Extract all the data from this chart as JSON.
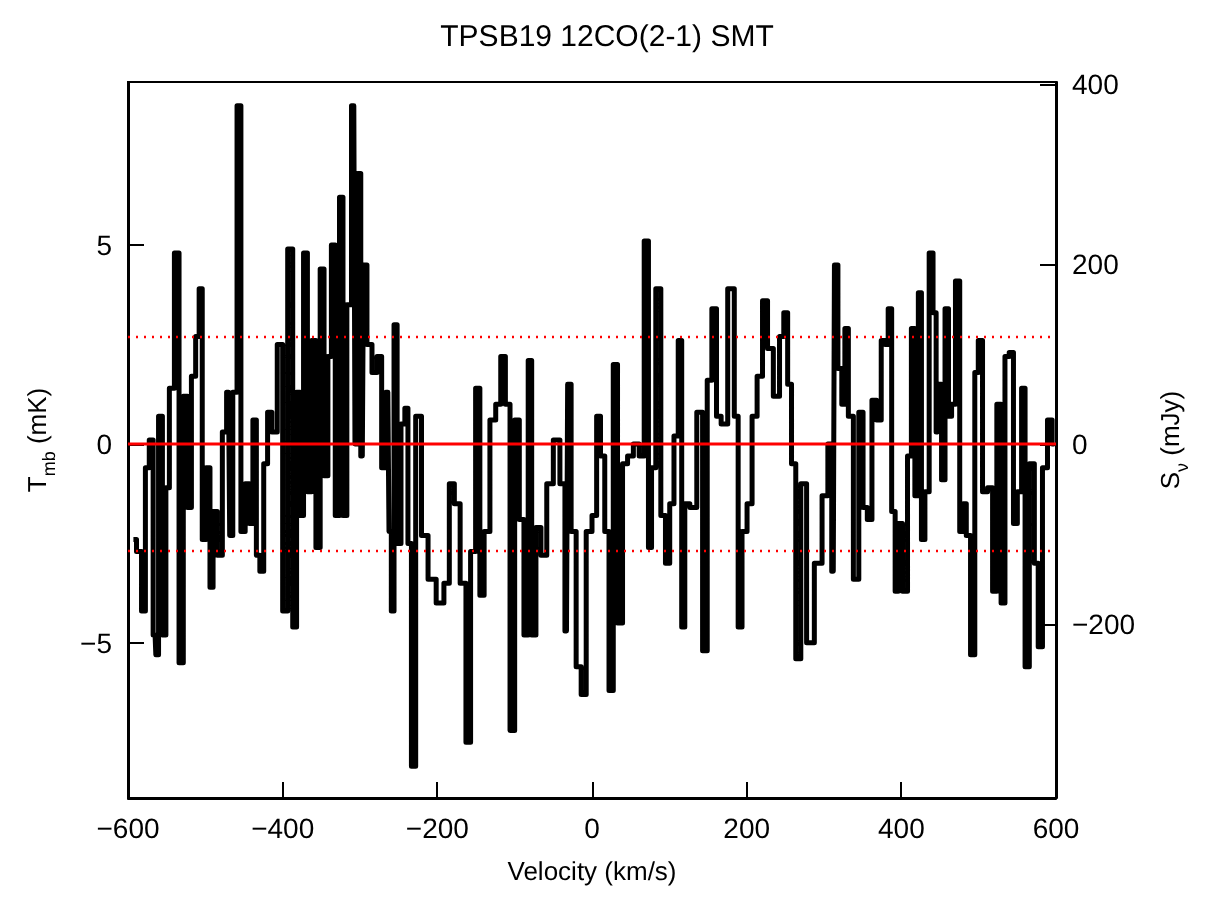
{
  "chart_data": {
    "type": "step",
    "title": "TPSB19 12CO(2-1) SMT",
    "xlabel": "Velocity (km/s)",
    "ylabel": "T$_{mb}$ (mK)",
    "y2label": "S$_{ν}$ (mJy)",
    "xlim": [
      -600,
      600
    ],
    "xticks": [
      -600,
      -400,
      -200,
      0,
      200,
      400,
      600
    ],
    "ylim": [
      -8.9,
      9.1
    ],
    "yticks": [
      -5,
      0,
      5
    ],
    "y2lim": [
      -393,
      402
    ],
    "y2ticks": [
      -200,
      0,
      200,
      400
    ],
    "grid": false,
    "ref_lines": [
      {
        "axis": "y",
        "value": 0,
        "color": "#ff0000",
        "line_style": "solid"
      },
      {
        "axis": "y",
        "value": 2.7,
        "color": "#ff0000",
        "line_style": "dotted"
      },
      {
        "axis": "y",
        "value": -2.7,
        "color": "#ff0000",
        "line_style": "dotted"
      }
    ],
    "series": [
      {
        "color": "#000000",
        "x": [
          -593,
          -585,
          -580,
          -575,
          -570,
          -565,
          -563,
          -558,
          -553,
          -549,
          -544,
          -536,
          -532,
          -525,
          -521,
          -515,
          -510,
          -506,
          -502,
          -496,
          -492,
          -488,
          -481,
          -475,
          -470,
          -467,
          -462,
          -456,
          -452,
          -445,
          -441,
          -436,
          -432,
          -427,
          -422,
          -417,
          -411,
          -403,
          -397,
          -390,
          -384,
          -380,
          -375,
          -371,
          -365,
          -360,
          -354,
          -349,
          -344,
          -339,
          -335,
          -329,
          -324,
          -320,
          -314,
          -308,
          -305,
          -301,
          -297,
          -294,
          -288,
          -281,
          -275,
          -269,
          -264,
          -261,
          -258,
          -254,
          -250,
          -244,
          -240,
          -236,
          -231,
          -225,
          -216,
          -208,
          -195,
          -188,
          -181,
          -175,
          -166,
          -160,
          -154,
          -147,
          -143,
          -136,
          -128,
          -121,
          -115,
          -109,
          -103,
          -97,
          -91,
          -85,
          -80,
          -76,
          -69,
          -63,
          -54,
          -46,
          -37,
          -33,
          -30,
          -24,
          -17,
          -11,
          -4,
          4,
          8,
          14,
          19,
          25,
          30,
          36,
          43,
          49,
          58,
          64,
          71,
          75,
          79,
          86,
          92,
          98,
          103,
          109,
          114,
          118,
          122,
          131,
          140,
          146,
          152,
          158,
          164,
          170,
          181,
          187,
          191,
          197,
          204,
          210,
          217,
          224,
          230,
          239,
          246,
          250,
          256,
          260,
          267,
          273,
          282,
          293,
          302,
          308,
          312,
          315,
          321,
          325,
          329,
          334,
          342,
          348,
          353,
          359,
          365,
          371,
          377,
          381,
          385,
          390,
          394,
          398,
          405,
          411,
          415,
          420,
          424,
          428,
          433,
          439,
          443,
          447,
          450,
          454,
          459,
          463,
          467,
          473,
          478,
          482,
          486,
          493,
          497,
          502,
          508,
          515,
          521,
          526,
          532,
          536,
          543,
          547,
          553,
          558,
          562,
          569,
          575,
          579,
          586,
          592,
          598
        ],
        "values": [
          -2.4,
          -2.7,
          -4.2,
          -0.6,
          0.1,
          -4.8,
          -5.3,
          0.7,
          -4.8,
          -1.1,
          1.4,
          4.8,
          -5.5,
          1.2,
          -1.6,
          1.7,
          2.7,
          3.9,
          -2.4,
          -0.6,
          -3.6,
          -1.7,
          -2.8,
          0.3,
          1.3,
          -2.3,
          1.3,
          8.5,
          -2.2,
          -1.0,
          -2.0,
          0.6,
          -2.8,
          -3.2,
          -0.5,
          0.8,
          0.3,
          2.5,
          -4.2,
          4.9,
          -4.6,
          1.3,
          -1.8,
          4.8,
          -1.2,
          2.6,
          -2.6,
          4.4,
          -0.8,
          2.2,
          5.0,
          -1.8,
          6.2,
          -1.8,
          3.5,
          8.5,
          0,
          6.8,
          -0.3,
          4.5,
          2.5,
          1.8,
          2.2,
          -0.6,
          1.3,
          -2.2,
          -4.2,
          3.0,
          -2.5,
          0.5,
          0.9,
          -2.5,
          -8.1,
          0.7,
          -2.3,
          -3.4,
          -4.0,
          -3.5,
          -1.0,
          -1.5,
          -3.5,
          -7.5,
          -2.7,
          1.4,
          -3.8,
          -2.2,
          0.6,
          1.0,
          2.2,
          1.0,
          -7.2,
          0.6,
          -1.9,
          -4.8,
          2.1,
          -4.8,
          -2.1,
          -2.8,
          -1.0,
          0.1,
          -1.0,
          -4.7,
          1.5,
          -2.2,
          -5.6,
          -6.3,
          -2.2,
          -1.8,
          0.7,
          -0.3,
          -2.2,
          -6.2,
          2.0,
          -4.5,
          -0.5,
          -0.3,
          0.0,
          -0.3,
          5.1,
          -2.6,
          -0.6,
          3.9,
          -1.8,
          -3.0,
          -1.5,
          0.2,
          2.6,
          -4.6,
          -1.5,
          -1.6,
          0.8,
          -5.2,
          1.6,
          3.4,
          0.7,
          0.5,
          3.9,
          0.7,
          -4.6,
          -2.2,
          -1.5,
          0.7,
          1.7,
          3.6,
          2.4,
          1.2,
          2.7,
          3.3,
          1.5,
          -0.5,
          -5.4,
          -1.0,
          -5.0,
          -3.0,
          -1.3,
          0.0,
          -3.2,
          4.5,
          1.9,
          1.0,
          2.9,
          0.7,
          -3.4,
          0.8,
          -1.6,
          -1.9,
          1.1,
          0.6,
          2.6,
          2.5,
          3.4,
          -1.7,
          -3.7,
          -2.0,
          -3.7,
          -0.3,
          2.9,
          -1.3,
          3.8,
          -2.4,
          -1.2,
          4.8,
          3.3,
          0.3,
          1.5,
          -0.9,
          3.4,
          0.7,
          1.0,
          4.1,
          -2.2,
          -1.5,
          -2.3,
          -5.3,
          1.8,
          2.6,
          -1.2,
          -1.1,
          -3.7,
          1.0,
          -4.0,
          2.2,
          2.3,
          -2.0,
          -1.2,
          1.4,
          -5.6,
          -0.5,
          -3.0,
          -5.1,
          -0.6,
          0.6,
          0
        ]
      }
    ]
  }
}
